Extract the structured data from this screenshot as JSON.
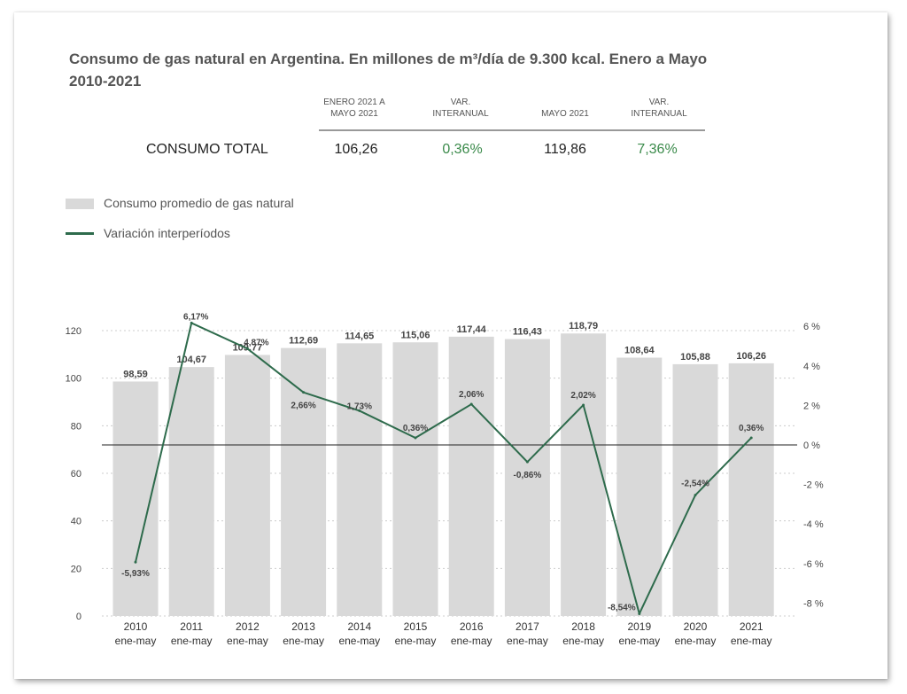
{
  "title": "Consumo de gas natural en Argentina. En millones de m³/día de 9.300 kcal. Enero a Mayo 2010-2021",
  "summary": {
    "headers": [
      "ENERO 2021 A\nMAYO 2021",
      "VAR.\nINTERANUAL",
      "MAYO 2021",
      "VAR.\nINTERANUAL"
    ],
    "row_label": "CONSUMO TOTAL",
    "values": [
      "106,26",
      "0,36%",
      "119,86",
      "7,36%"
    ],
    "accent_color": "#3a8a4a"
  },
  "legend": {
    "bar_label": "Consumo promedio de gas natural",
    "line_label": "Variación interperíodos"
  },
  "colors": {
    "bar": "#d9d9d9",
    "line": "#2e6b4c"
  },
  "chart_data": {
    "type": "bar",
    "categories": [
      "2010\nene-may",
      "2011\nene-may",
      "2012\nene-may",
      "2013\nene-may",
      "2014\nene-may",
      "2015\nene-may",
      "2016\nene-may",
      "2017\nene-may",
      "2018\nene-may",
      "2019\nene-may",
      "2020\nene-may",
      "2021\nene-may"
    ],
    "series": [
      {
        "name": "Consumo promedio de gas natural",
        "type": "bar",
        "axis": "left",
        "values": [
          98.59,
          104.67,
          109.77,
          112.69,
          114.65,
          115.06,
          117.44,
          116.43,
          118.79,
          108.64,
          105.88,
          106.26
        ],
        "labels": [
          "98,59",
          "104,67",
          "109,77",
          "112,69",
          "114,65",
          "115,06",
          "117,44",
          "116,43",
          "118,79",
          "108,64",
          "105,88",
          "106,26"
        ]
      },
      {
        "name": "Variación interperíodos",
        "type": "line",
        "axis": "right",
        "values": [
          -5.93,
          6.17,
          4.87,
          2.66,
          1.73,
          0.36,
          2.06,
          -0.86,
          2.02,
          -8.54,
          -2.54,
          0.36
        ],
        "labels": [
          "-5,93%",
          "6,17%",
          "4,87%",
          "2,66%",
          "1,73%",
          "0,36%",
          "2,06%",
          "-0,86%",
          "2,02%",
          "-8,54%",
          "-2,54%",
          "0,36%"
        ]
      }
    ],
    "y_left": {
      "ylim": [
        0,
        120
      ],
      "ticks": [
        "0",
        "20",
        "40",
        "60",
        "80",
        "100",
        "120"
      ]
    },
    "y_right": {
      "ylim": [
        -8,
        6
      ],
      "ticks": [
        "-8 %",
        "-6 %",
        "-4 %",
        "-2 %",
        "0 %",
        "2 %",
        "4 %",
        "6 %"
      ]
    },
    "grid": "dotted horizontal",
    "legend_position": "top-left"
  }
}
